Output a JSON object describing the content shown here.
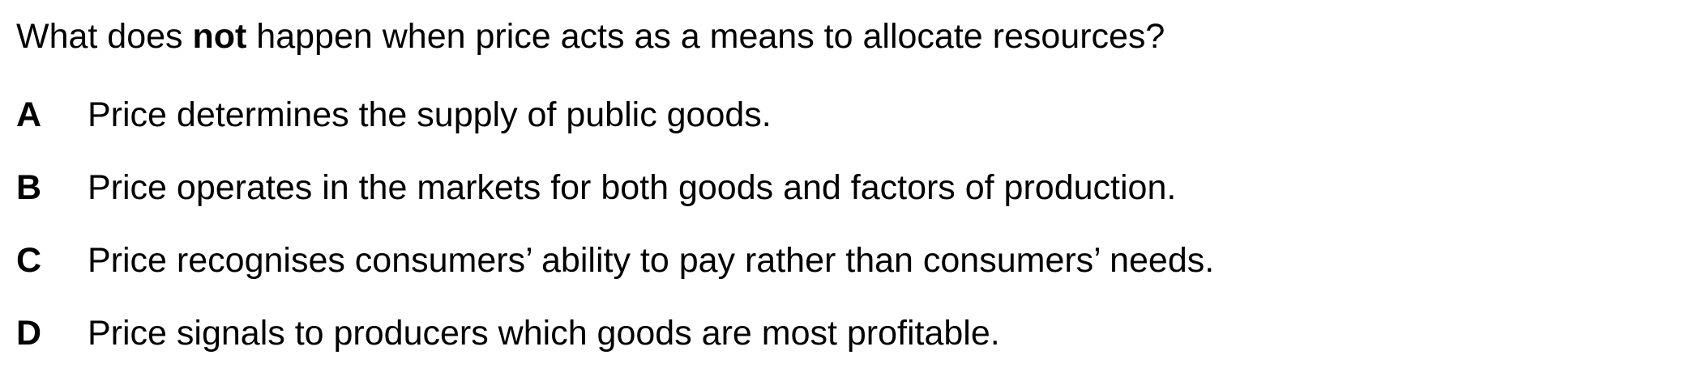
{
  "question": {
    "before": "What does ",
    "emphasis": "not",
    "after": " happen when price acts as a means to allocate resources?"
  },
  "options": [
    {
      "letter": "A",
      "text": "Price determines the supply of public goods."
    },
    {
      "letter": "B",
      "text": "Price operates in the markets for both goods and factors of production."
    },
    {
      "letter": "C",
      "text": "Price recognises consumers’ ability to pay rather than consumers’ needs."
    },
    {
      "letter": "D",
      "text": "Price signals to producers which goods are most profitable."
    }
  ]
}
